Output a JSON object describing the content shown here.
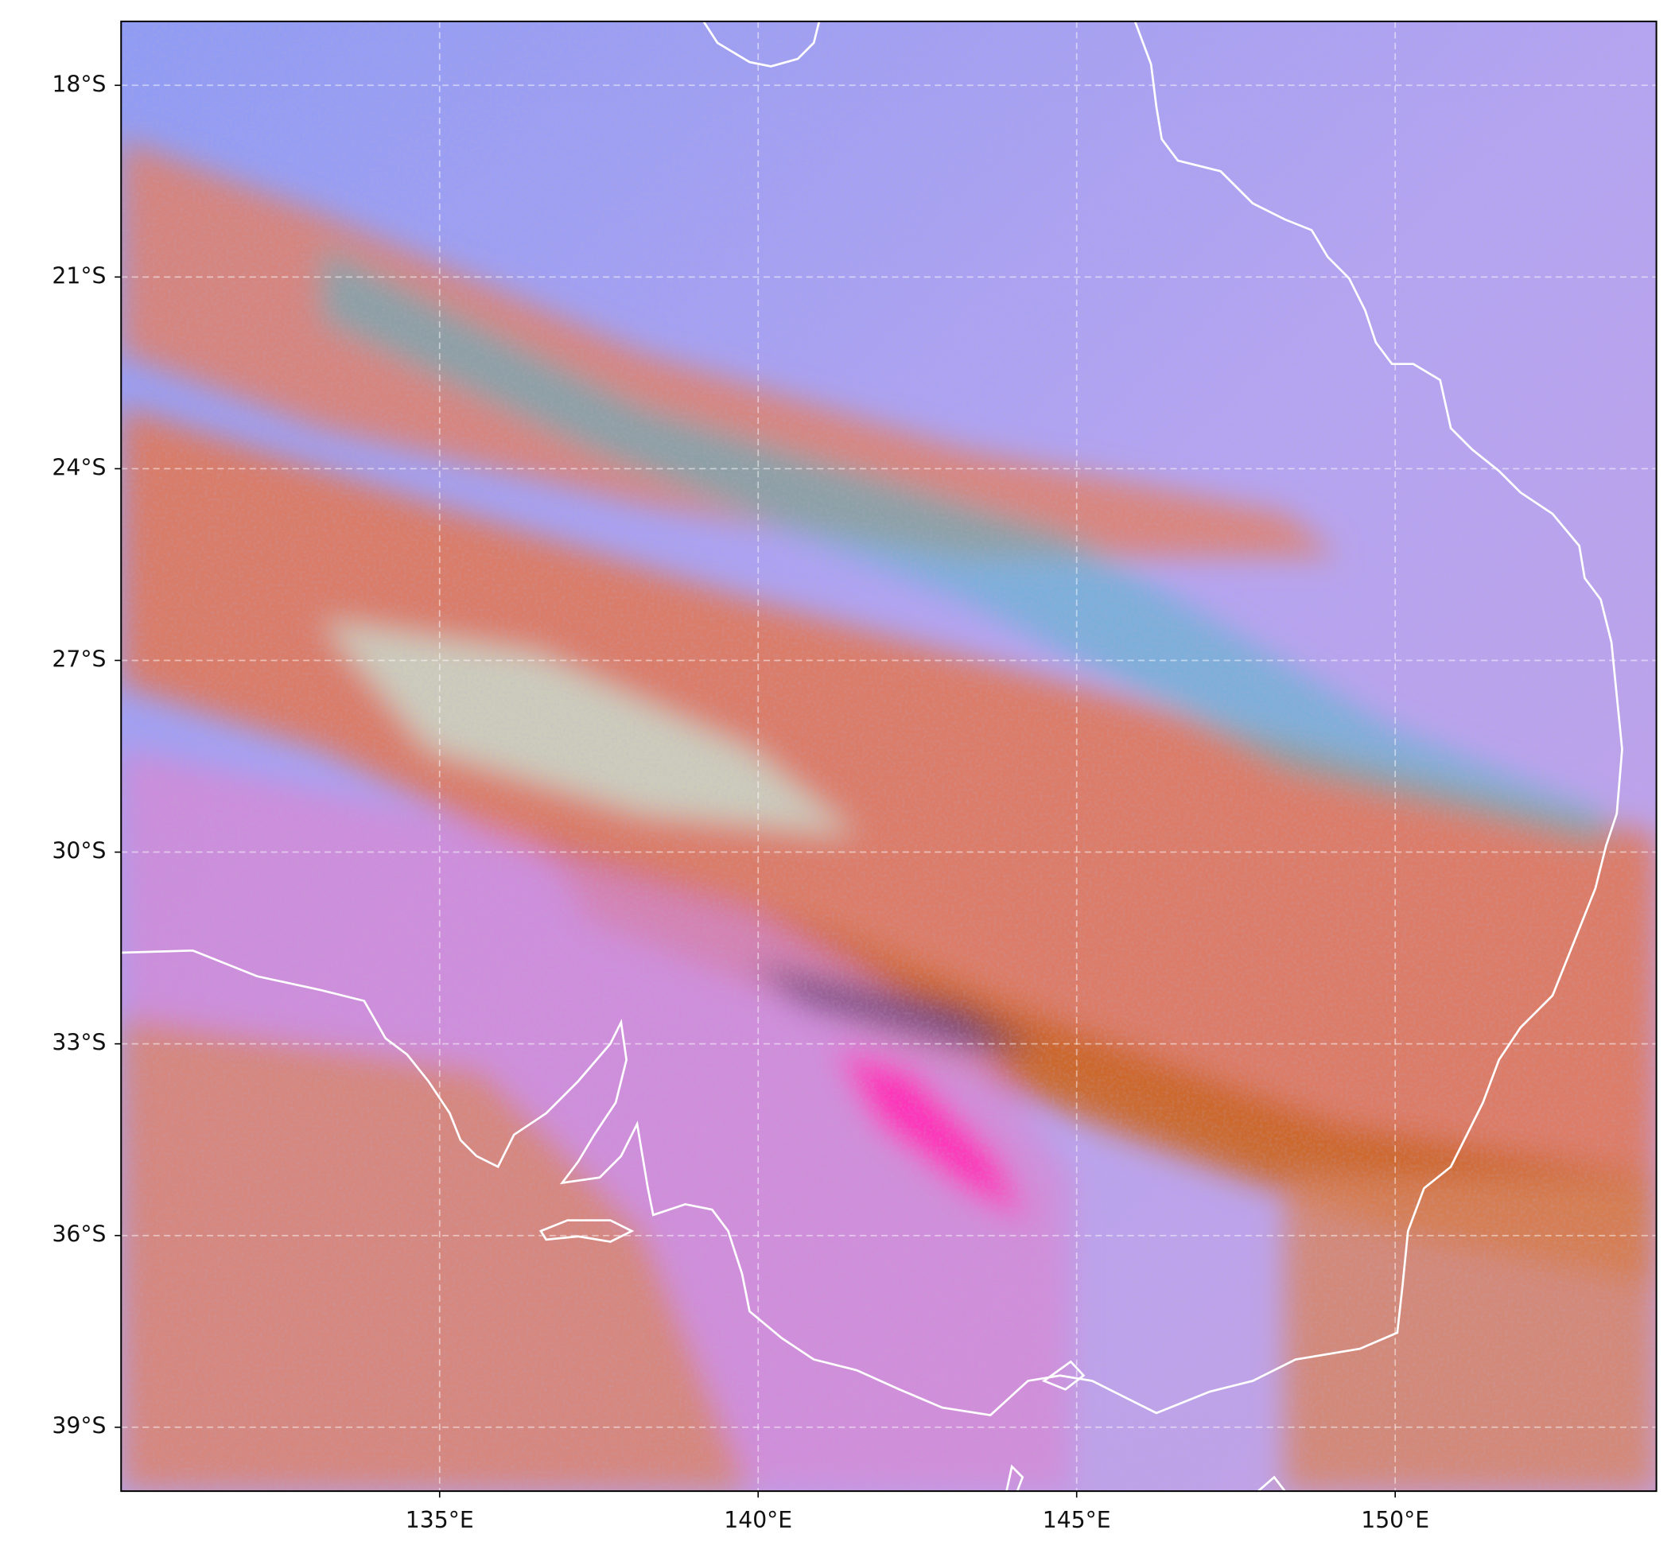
{
  "map": {
    "xlim": [
      130,
      154.1
    ],
    "ylim": [
      -40,
      -17
    ],
    "xticks": [
      {
        "value": 135,
        "label": "135°E"
      },
      {
        "value": 140,
        "label": "140°E"
      },
      {
        "value": 145,
        "label": "145°E"
      },
      {
        "value": 150,
        "label": "150°E"
      }
    ],
    "yticks": [
      {
        "value": -18,
        "label": "18°S"
      },
      {
        "value": -21,
        "label": "21°S"
      },
      {
        "value": -24,
        "label": "24°S"
      },
      {
        "value": -27,
        "label": "27°S"
      },
      {
        "value": -30,
        "label": "30°S"
      },
      {
        "value": -33,
        "label": "33°S"
      },
      {
        "value": -36,
        "label": "36°S"
      },
      {
        "value": -39,
        "label": "39°S"
      }
    ],
    "grid": true
  }
}
